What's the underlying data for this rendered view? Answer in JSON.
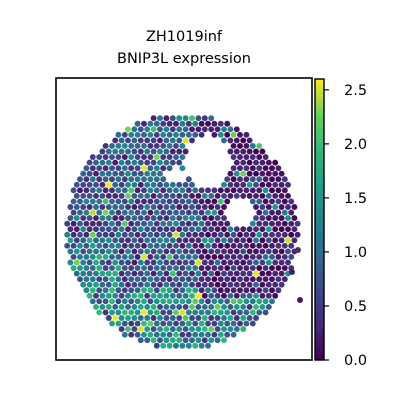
{
  "chart_data": {
    "type": "scatter",
    "title_lines": [
      "ZH1019inf",
      "BNIP3L expression"
    ],
    "xlabel": "",
    "ylabel": "",
    "colorbar": {
      "range": [
        0.0,
        2.6
      ],
      "ticks": [
        0.0,
        0.5,
        1.0,
        1.5,
        2.0,
        2.5
      ],
      "tick_labels": [
        "0.0",
        "0.5",
        "1.0",
        "1.5",
        "2.0",
        "2.5"
      ],
      "colormap": "viridis"
    },
    "grid": false,
    "legend": "none",
    "spatial_layout": "hexagonal spot grid",
    "colors": {
      "viridis_low": "#440154",
      "viridis_mid": "#21918c",
      "viridis_high": "#fde725"
    }
  }
}
